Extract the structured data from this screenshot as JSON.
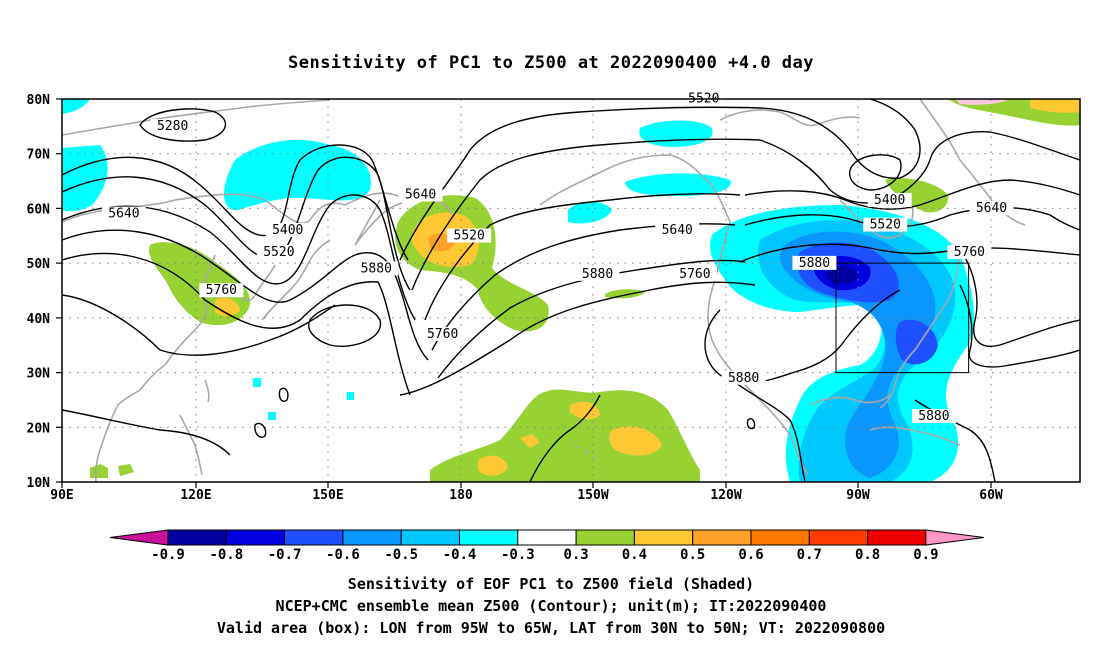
{
  "title": "Sensitivity of PC1 to Z500 at 2022090400 +4.0 day",
  "map": {
    "lat_labels": [
      "80N",
      "70N",
      "60N",
      "50N",
      "40N",
      "30N",
      "20N",
      "10N"
    ],
    "lon_labels": [
      "90E",
      "120E",
      "150E",
      "180",
      "150W",
      "120W",
      "90W",
      "60W"
    ],
    "valid_box": {
      "lon_from": "95W",
      "lon_to": "65W",
      "lat_from": "30N",
      "lat_to": "50N"
    },
    "contour_labels": [
      {
        "text": "5280",
        "lon": 115,
        "lat": 74.5
      },
      {
        "text": "5640",
        "lon": 104,
        "lat": 58.5
      },
      {
        "text": "5400",
        "lon": 141,
        "lat": 55.5
      },
      {
        "text": "5520",
        "lon": 139,
        "lat": 51.5
      },
      {
        "text": "5760",
        "lon": 126,
        "lat": 44.5
      },
      {
        "text": "5880",
        "lon": 161,
        "lat": 48.5
      },
      {
        "text": "5640",
        "lon": 171,
        "lat": 62
      },
      {
        "text": "5760",
        "lon": 176,
        "lat": 36.5
      },
      {
        "text": "5520",
        "lon": -178,
        "lat": 54.5
      },
      {
        "text": "5880",
        "lon": -149,
        "lat": 47.5
      },
      {
        "text": "5640",
        "lon": -131,
        "lat": 55.5
      },
      {
        "text": "5760",
        "lon": -127,
        "lat": 47.5
      },
      {
        "text": "5520",
        "lon": -125,
        "lat": 79.5
      },
      {
        "text": "5880",
        "lon": -100,
        "lat": 49.5
      },
      {
        "text": "5400",
        "lon": -83,
        "lat": 61
      },
      {
        "text": "5520",
        "lon": -84,
        "lat": 56.5
      },
      {
        "text": "5640",
        "lon": -60,
        "lat": 59.5
      },
      {
        "text": "5760",
        "lon": -65,
        "lat": 51.5
      },
      {
        "text": "5880",
        "lon": -116,
        "lat": 28.5
      },
      {
        "text": "5880",
        "lon": -73,
        "lat": 21.5
      }
    ]
  },
  "colorbar": {
    "labels": [
      "-0.9",
      "-0.8",
      "-0.7",
      "-0.6",
      "-0.5",
      "-0.4",
      "-0.3",
      "0.3",
      "0.4",
      "0.5",
      "0.6",
      "0.7",
      "0.8",
      "0.9"
    ],
    "colors": [
      "#0000a0",
      "#0000e0",
      "#1e50ff",
      "#0a96ff",
      "#00c8ff",
      "#00ffff",
      "#ffffff",
      "#96d232",
      "#ffc832",
      "#ffa028",
      "#ff7800",
      "#ff3c00",
      "#f00000"
    ],
    "low_arrow_color": "#c8109a",
    "high_arrow_color": "#ff96c8"
  },
  "captions": {
    "line1": "Sensitivity of EOF PC1 to Z500 field (Shaded)",
    "line2": "NCEP+CMC ensemble mean Z500 (Contour); unit(m); IT:2022090400",
    "line3": "Valid area (box): LON from 95W to 65W, LAT from 30N to 50N; VT: 2022090800"
  }
}
